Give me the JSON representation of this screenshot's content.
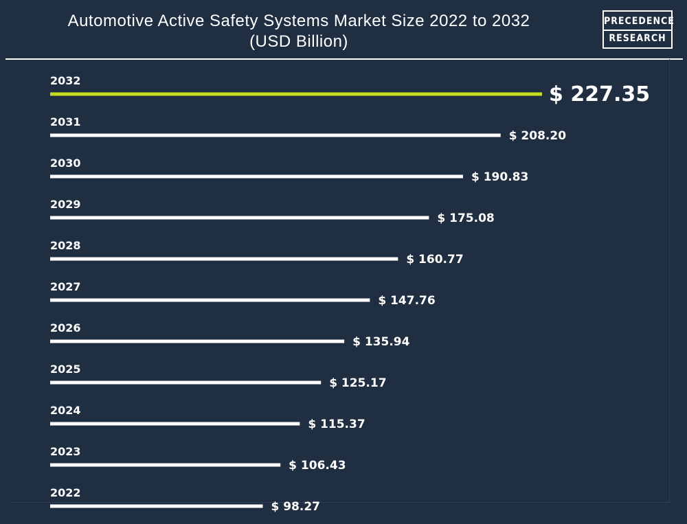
{
  "header": {
    "title_line1": "Automotive Active Safety Systems Market Size 2022 to 2032",
    "title_line2": "(USD Billion)"
  },
  "logo": {
    "line1": "PRECEDENCE",
    "line2": "RESEARCH"
  },
  "colors": {
    "background": "#1f2e41",
    "bar": "#ffffff",
    "highlight": "#c8dc1e"
  },
  "chart_data": {
    "type": "bar",
    "orientation": "horizontal",
    "title": "Automotive Active Safety Systems Market Size 2022 to 2032 (USD Billion)",
    "categories": [
      "2032",
      "2031",
      "2030",
      "2029",
      "2028",
      "2027",
      "2026",
      "2025",
      "2024",
      "2023",
      "2022"
    ],
    "values": [
      227.35,
      208.2,
      190.83,
      175.08,
      160.77,
      147.76,
      135.94,
      125.17,
      115.37,
      106.43,
      98.27
    ],
    "value_labels": [
      "$ 227.35",
      "$ 208.20",
      "$ 190.83",
      "$ 175.08",
      "$ 160.77",
      "$ 147.76",
      "$ 135.94",
      "$ 125.17",
      "$ 115.37",
      "$ 106.43",
      "$ 98.27"
    ],
    "highlight_category": "2032",
    "grid": false,
    "legend": "none"
  }
}
